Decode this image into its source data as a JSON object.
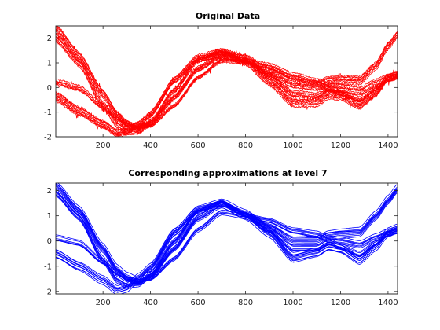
{
  "chart_data": [
    {
      "type": "line",
      "title": "Original Data",
      "color": "#ff0000",
      "noise": true,
      "xlim": [
        1,
        1440
      ],
      "ylim": [
        -2,
        2.5
      ],
      "xticks": [
        200,
        400,
        600,
        800,
        1000,
        1200,
        1400
      ],
      "yticks": [
        -2,
        -1,
        0,
        1,
        2
      ],
      "series_count": 32,
      "x": [
        1,
        100,
        200,
        260,
        300,
        350,
        400,
        500,
        600,
        700,
        800,
        900,
        1000,
        1100,
        1150,
        1200,
        1280,
        1350,
        1400,
        1440
      ],
      "series_groups": [
        {
          "count": 9,
          "values": [
            2.35,
            1.25,
            -0.25,
            -1.1,
            -1.45,
            -1.7,
            -1.45,
            -0.4,
            0.75,
            1.3,
            1.15,
            0.6,
            0.15,
            0.05,
            0.25,
            0.3,
            0.3,
            0.9,
            1.7,
            2.15
          ]
        },
        {
          "count": 10,
          "values": [
            -0.35,
            -0.95,
            -1.5,
            -1.85,
            -1.8,
            -1.5,
            -1.1,
            0.3,
            1.2,
            1.4,
            1.1,
            0.3,
            -0.55,
            -0.55,
            -0.25,
            -0.3,
            -0.7,
            -0.2,
            0.4,
            0.55
          ]
        },
        {
          "count": 6,
          "values": [
            0.2,
            -0.05,
            -0.8,
            -1.25,
            -1.5,
            -1.6,
            -1.55,
            -0.75,
            0.4,
            1.1,
            1.05,
            0.5,
            -0.25,
            -0.35,
            -0.05,
            -0.25,
            -0.5,
            -0.05,
            0.3,
            0.4
          ]
        },
        {
          "count": 7,
          "values": [
            2.0,
            1.0,
            -0.7,
            -1.5,
            -1.75,
            -1.75,
            -1.4,
            -0.1,
            1.1,
            1.5,
            1.05,
            0.85,
            0.45,
            0.2,
            0.0,
            -0.05,
            -0.15,
            0.2,
            0.4,
            0.5
          ]
        }
      ]
    },
    {
      "type": "line",
      "title": "Corresponding approximations at level 7",
      "color": "#0000ff",
      "noise": false,
      "xlim": [
        1,
        1440
      ],
      "ylim": [
        -2.1,
        2.3
      ],
      "xticks": [
        200,
        400,
        600,
        800,
        1000,
        1200,
        1400
      ],
      "yticks": [
        -2,
        -1,
        0,
        1,
        2
      ],
      "series_count": 32,
      "x": [
        1,
        100,
        200,
        260,
        300,
        350,
        400,
        500,
        600,
        700,
        800,
        900,
        1000,
        1100,
        1150,
        1200,
        1280,
        1350,
        1400,
        1440
      ],
      "series_groups": [
        {
          "count": 9,
          "values": [
            2.2,
            1.2,
            -0.3,
            -1.15,
            -1.45,
            -1.65,
            -1.4,
            -0.3,
            0.9,
            1.45,
            1.05,
            0.55,
            0.05,
            0.05,
            0.25,
            0.3,
            0.35,
            1.0,
            1.6,
            2.05
          ]
        },
        {
          "count": 10,
          "values": [
            -0.5,
            -1.0,
            -1.55,
            -1.95,
            -1.85,
            -1.45,
            -1.05,
            0.35,
            1.25,
            1.5,
            1.05,
            0.35,
            -0.65,
            -0.45,
            -0.2,
            -0.3,
            -0.75,
            -0.2,
            0.35,
            0.5
          ]
        },
        {
          "count": 6,
          "values": [
            0.1,
            -0.1,
            -0.85,
            -1.3,
            -1.5,
            -1.6,
            -1.5,
            -0.7,
            0.45,
            1.15,
            1.0,
            0.45,
            -0.3,
            -0.3,
            -0.05,
            -0.25,
            -0.55,
            -0.1,
            0.25,
            0.35
          ]
        },
        {
          "count": 7,
          "values": [
            1.9,
            0.95,
            -0.75,
            -1.55,
            -1.75,
            -1.7,
            -1.35,
            0.0,
            1.2,
            1.55,
            1.0,
            0.8,
            0.4,
            0.25,
            0.05,
            0.0,
            -0.15,
            0.15,
            0.35,
            0.45
          ]
        }
      ]
    }
  ]
}
